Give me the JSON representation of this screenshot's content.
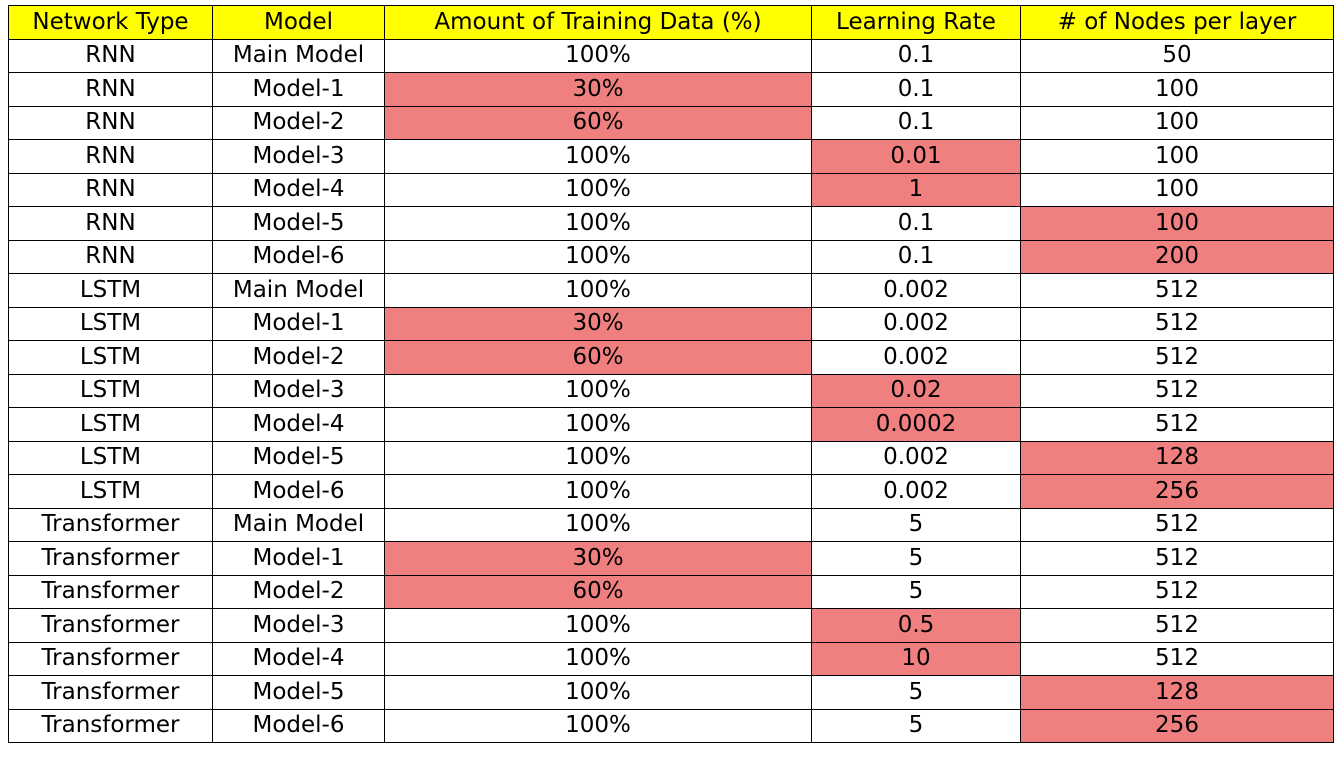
{
  "chart_data": {
    "type": "table",
    "columns": [
      "Network Type",
      "Model",
      "Amount of Training Data (%)",
      "Learning Rate",
      "# of Nodes per layer"
    ],
    "rows": [
      [
        "RNN",
        "Main Model",
        "100%",
        "0.1",
        "50"
      ],
      [
        "RNN",
        "Model-1",
        "30%",
        "0.1",
        "100"
      ],
      [
        "RNN",
        "Model-2",
        "60%",
        "0.1",
        "100"
      ],
      [
        "RNN",
        "Model-3",
        "100%",
        "0.01",
        "100"
      ],
      [
        "RNN",
        "Model-4",
        "100%",
        "1",
        "100"
      ],
      [
        "RNN",
        "Model-5",
        "100%",
        "0.1",
        "100"
      ],
      [
        "RNN",
        "Model-6",
        "100%",
        "0.1",
        "200"
      ],
      [
        "LSTM",
        "Main Model",
        "100%",
        "0.002",
        "512"
      ],
      [
        "LSTM",
        "Model-1",
        "30%",
        "0.002",
        "512"
      ],
      [
        "LSTM",
        "Model-2",
        "60%",
        "0.002",
        "512"
      ],
      [
        "LSTM",
        "Model-3",
        "100%",
        "0.02",
        "512"
      ],
      [
        "LSTM",
        "Model-4",
        "100%",
        "0.0002",
        "512"
      ],
      [
        "LSTM",
        "Model-5",
        "100%",
        "0.002",
        "128"
      ],
      [
        "LSTM",
        "Model-6",
        "100%",
        "0.002",
        "256"
      ],
      [
        "Transformer",
        "Main Model",
        "100%",
        "5",
        "512"
      ],
      [
        "Transformer",
        "Model-1",
        "30%",
        "5",
        "512"
      ],
      [
        "Transformer",
        "Model-2",
        "60%",
        "5",
        "512"
      ],
      [
        "Transformer",
        "Model-3",
        "100%",
        "0.5",
        "512"
      ],
      [
        "Transformer",
        "Model-4",
        "100%",
        "10",
        "512"
      ],
      [
        "Transformer",
        "Model-5",
        "100%",
        "5",
        "128"
      ],
      [
        "Transformer",
        "Model-6",
        "100%",
        "5",
        "256"
      ]
    ],
    "highlighted_cells": [
      [
        1,
        2
      ],
      [
        2,
        2
      ],
      [
        3,
        3
      ],
      [
        4,
        3
      ],
      [
        5,
        4
      ],
      [
        6,
        4
      ],
      [
        8,
        2
      ],
      [
        9,
        2
      ],
      [
        10,
        3
      ],
      [
        11,
        3
      ],
      [
        12,
        4
      ],
      [
        13,
        4
      ],
      [
        15,
        2
      ],
      [
        16,
        2
      ],
      [
        17,
        3
      ],
      [
        18,
        3
      ],
      [
        19,
        4
      ],
      [
        20,
        4
      ]
    ],
    "header_color": "#ffff00",
    "highlight_color": "#f08080",
    "border_color": "#000000"
  }
}
